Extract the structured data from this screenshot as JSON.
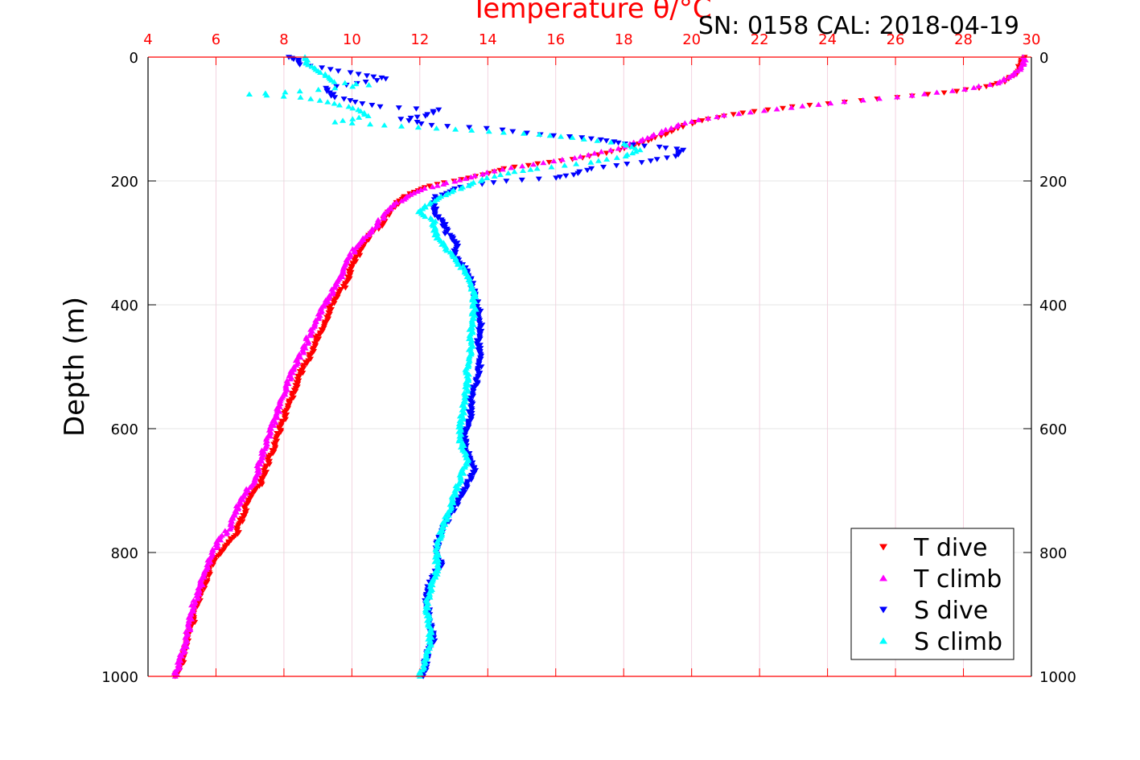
{
  "header": {
    "title": "SN: 0158  CAL: 2018-04-19"
  },
  "chart_data": {
    "type": "scatter",
    "xlabel": "Temperature θ/°C",
    "ylabel": "Depth (m)",
    "xlim": [
      4,
      30
    ],
    "ylim": [
      0,
      1000
    ],
    "y_reversed": true,
    "x_axis_position": "top",
    "y_axis_mirrored": "right",
    "grid": true,
    "x_ticks": [
      4,
      6,
      8,
      10,
      12,
      14,
      16,
      18,
      20,
      22,
      24,
      26,
      28,
      30
    ],
    "y_ticks": [
      0,
      200,
      400,
      600,
      800,
      1000
    ],
    "legend_position": "bottom-right",
    "colors": {
      "axis_x": "#ff0000",
      "axis_y": "#000000",
      "grid": "#d9d9d9"
    },
    "series": [
      {
        "name": "T dive",
        "marker": "triangle-down",
        "color": "#ff0000",
        "points": [
          [
            29.8,
            0
          ],
          [
            29.7,
            10
          ],
          [
            29.6,
            25
          ],
          [
            29.2,
            40
          ],
          [
            28.5,
            50
          ],
          [
            27.0,
            60
          ],
          [
            25.0,
            70
          ],
          [
            23.0,
            80
          ],
          [
            21.5,
            90
          ],
          [
            20.5,
            100
          ],
          [
            19.8,
            110
          ],
          [
            19.2,
            125
          ],
          [
            18.5,
            140
          ],
          [
            17.5,
            155
          ],
          [
            16.5,
            165
          ],
          [
            15.5,
            172
          ],
          [
            14.5,
            180
          ],
          [
            13.8,
            190
          ],
          [
            13.0,
            200
          ],
          [
            12.3,
            208
          ],
          [
            11.8,
            218
          ],
          [
            11.4,
            232
          ],
          [
            11.1,
            250
          ],
          [
            10.9,
            270
          ],
          [
            10.5,
            290
          ],
          [
            10.3,
            310
          ],
          [
            10.0,
            340
          ],
          [
            9.8,
            370
          ],
          [
            9.4,
            400
          ],
          [
            9.2,
            430
          ],
          [
            9.0,
            450
          ],
          [
            8.8,
            480
          ],
          [
            8.5,
            510
          ],
          [
            8.3,
            540
          ],
          [
            8.1,
            570
          ],
          [
            7.9,
            600
          ],
          [
            7.7,
            630
          ],
          [
            7.5,
            660
          ],
          [
            7.3,
            690
          ],
          [
            7.0,
            710
          ],
          [
            6.8,
            740
          ],
          [
            6.6,
            770
          ],
          [
            6.3,
            790
          ],
          [
            6.0,
            810
          ],
          [
            5.8,
            830
          ],
          [
            5.6,
            860
          ],
          [
            5.4,
            890
          ],
          [
            5.3,
            920
          ],
          [
            5.1,
            950
          ],
          [
            5.0,
            980
          ],
          [
            4.8,
            1000
          ]
        ]
      },
      {
        "name": "T climb",
        "marker": "triangle-up",
        "color": "#ff00ff",
        "points": [
          [
            29.8,
            0
          ],
          [
            29.8,
            12
          ],
          [
            29.5,
            28
          ],
          [
            29.0,
            42
          ],
          [
            28.0,
            52
          ],
          [
            26.5,
            62
          ],
          [
            24.5,
            72
          ],
          [
            22.5,
            84
          ],
          [
            21.0,
            94
          ],
          [
            20.0,
            104
          ],
          [
            19.5,
            112
          ],
          [
            18.8,
            128
          ],
          [
            18.0,
            145
          ],
          [
            17.0,
            158
          ],
          [
            16.0,
            168
          ],
          [
            15.0,
            176
          ],
          [
            14.2,
            184
          ],
          [
            13.5,
            194
          ],
          [
            12.8,
            203
          ],
          [
            12.2,
            212
          ],
          [
            11.7,
            222
          ],
          [
            11.2,
            240
          ],
          [
            10.9,
            258
          ],
          [
            10.6,
            280
          ],
          [
            10.2,
            300
          ],
          [
            9.9,
            325
          ],
          [
            9.7,
            355
          ],
          [
            9.4,
            380
          ],
          [
            9.1,
            410
          ],
          [
            8.8,
            440
          ],
          [
            8.6,
            470
          ],
          [
            8.3,
            500
          ],
          [
            8.1,
            530
          ],
          [
            7.9,
            560
          ],
          [
            7.7,
            590
          ],
          [
            7.5,
            620
          ],
          [
            7.3,
            650
          ],
          [
            7.2,
            680
          ],
          [
            6.9,
            700
          ],
          [
            6.6,
            730
          ],
          [
            6.4,
            760
          ],
          [
            6.1,
            780
          ],
          [
            5.9,
            800
          ],
          [
            5.7,
            830
          ],
          [
            5.5,
            860
          ],
          [
            5.3,
            890
          ],
          [
            5.2,
            920
          ],
          [
            5.1,
            950
          ],
          [
            4.9,
            980
          ],
          [
            4.8,
            1000
          ]
        ]
      },
      {
        "name": "S dive",
        "marker": "triangle-down",
        "color": "#0000ff",
        "points": [
          [
            8.1,
            0
          ],
          [
            8.4,
            5
          ],
          [
            8.5,
            12
          ],
          [
            10.5,
            30
          ],
          [
            11.0,
            35
          ],
          [
            9.2,
            50
          ],
          [
            9.5,
            65
          ],
          [
            10.8,
            80
          ],
          [
            12.5,
            85
          ],
          [
            12.2,
            95
          ],
          [
            11.5,
            100
          ],
          [
            12.3,
            110
          ],
          [
            14.0,
            115
          ],
          [
            15.5,
            125
          ],
          [
            16.8,
            130
          ],
          [
            17.5,
            135
          ],
          [
            18.0,
            140
          ],
          [
            19.0,
            145
          ],
          [
            19.8,
            150
          ],
          [
            19.5,
            160
          ],
          [
            18.5,
            170
          ],
          [
            17.0,
            180
          ],
          [
            16.5,
            190
          ],
          [
            16.0,
            195
          ],
          [
            14.5,
            200
          ],
          [
            13.2,
            210
          ],
          [
            12.5,
            225
          ],
          [
            12.4,
            240
          ],
          [
            12.5,
            255
          ],
          [
            12.7,
            270
          ],
          [
            12.8,
            285
          ],
          [
            13.1,
            300
          ],
          [
            13.0,
            320
          ],
          [
            13.3,
            340
          ],
          [
            13.5,
            360
          ],
          [
            13.6,
            380
          ],
          [
            13.7,
            400
          ],
          [
            13.8,
            430
          ],
          [
            13.7,
            460
          ],
          [
            13.8,
            490
          ],
          [
            13.7,
            520
          ],
          [
            13.5,
            550
          ],
          [
            13.5,
            580
          ],
          [
            13.3,
            610
          ],
          [
            13.4,
            640
          ],
          [
            13.6,
            670
          ],
          [
            13.3,
            700
          ],
          [
            13.0,
            730
          ],
          [
            12.7,
            760
          ],
          [
            12.5,
            790
          ],
          [
            12.6,
            820
          ],
          [
            12.3,
            850
          ],
          [
            12.2,
            880
          ],
          [
            12.3,
            910
          ],
          [
            12.4,
            940
          ],
          [
            12.2,
            970
          ],
          [
            12.1,
            1000
          ]
        ]
      },
      {
        "name": "S climb",
        "marker": "triangle-up",
        "color": "#00ffff",
        "points": [
          [
            8.6,
            0
          ],
          [
            8.7,
            10
          ],
          [
            9.5,
            40
          ],
          [
            10.5,
            45
          ],
          [
            8.5,
            55
          ],
          [
            7.0,
            60
          ],
          [
            8.5,
            65
          ],
          [
            9.5,
            75
          ],
          [
            10.2,
            85
          ],
          [
            10.5,
            95
          ],
          [
            9.5,
            105
          ],
          [
            11.0,
            110
          ],
          [
            12.5,
            115
          ],
          [
            14.0,
            120
          ],
          [
            15.5,
            125
          ],
          [
            16.5,
            130
          ],
          [
            18.0,
            140
          ],
          [
            18.5,
            150
          ],
          [
            18.0,
            160
          ],
          [
            17.0,
            170
          ],
          [
            15.5,
            180
          ],
          [
            14.8,
            185
          ],
          [
            14.0,
            195
          ],
          [
            13.5,
            205
          ],
          [
            12.8,
            220
          ],
          [
            12.2,
            240
          ],
          [
            12.0,
            250
          ],
          [
            12.4,
            265
          ],
          [
            12.5,
            290
          ],
          [
            12.8,
            310
          ],
          [
            13.1,
            330
          ],
          [
            13.4,
            350
          ],
          [
            13.6,
            380
          ],
          [
            13.6,
            410
          ],
          [
            13.5,
            440
          ],
          [
            13.5,
            470
          ],
          [
            13.4,
            500
          ],
          [
            13.4,
            530
          ],
          [
            13.3,
            560
          ],
          [
            13.2,
            590
          ],
          [
            13.2,
            620
          ],
          [
            13.4,
            650
          ],
          [
            13.2,
            680
          ],
          [
            13.0,
            710
          ],
          [
            12.8,
            740
          ],
          [
            12.6,
            770
          ],
          [
            12.5,
            800
          ],
          [
            12.5,
            830
          ],
          [
            12.3,
            860
          ],
          [
            12.2,
            890
          ],
          [
            12.3,
            920
          ],
          [
            12.3,
            950
          ],
          [
            12.1,
            980
          ],
          [
            12.0,
            1000
          ]
        ]
      }
    ]
  }
}
